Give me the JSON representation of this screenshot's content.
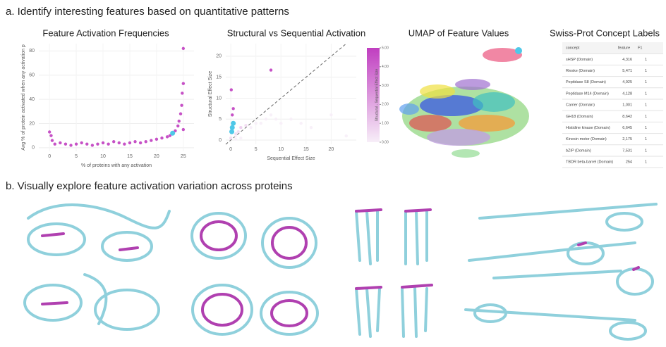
{
  "section_a": "a. Identify interesting features based on quantitative patterns",
  "section_b": "b. Visually explore feature activation variation across proteins",
  "chart_data": [
    {
      "type": "scatter",
      "title": "Feature Activation Frequencies",
      "x_label": "% of proteins with any activation",
      "y_label": "Avg % of protein activated when any activation p",
      "x": [
        0,
        0.5,
        1,
        2,
        3,
        4,
        5,
        6,
        7,
        8,
        9,
        10,
        11,
        12,
        13,
        14,
        15,
        16,
        17,
        18,
        19,
        20,
        21,
        22,
        22.5,
        23,
        23.5,
        24,
        24.2,
        24.5,
        24.7,
        24.8,
        25,
        25,
        25,
        0.3
      ],
      "values": [
        13,
        6,
        3,
        4,
        3,
        2,
        3,
        4,
        3,
        2,
        3,
        4,
        3,
        5,
        4,
        3,
        4,
        5,
        4,
        5,
        6,
        7,
        8,
        9,
        10,
        12,
        14,
        18,
        22,
        28,
        35,
        45,
        53,
        82,
        15,
        10
      ],
      "color": "#c03ec0",
      "highlight": {
        "x": [
          23
        ],
        "values": [
          12
        ],
        "color": "#4fc8e8"
      },
      "xlim": [
        -2,
        27
      ],
      "ylim": [
        -3,
        86
      ],
      "xticks": [
        0,
        5,
        10,
        15,
        20,
        25
      ],
      "yticks": [
        0,
        20,
        40,
        60,
        80
      ],
      "grid": true
    },
    {
      "type": "scatter",
      "title": "Structural vs Sequential Activation",
      "x_label": "Sequential Effect Size",
      "y_label": "Structural Effect Size",
      "x": [
        0,
        0.2,
        0.5,
        1,
        1.5,
        2,
        3,
        4,
        5,
        6,
        7,
        8,
        9,
        10,
        12,
        14,
        16,
        0.3,
        0.5,
        1,
        2,
        8,
        0.1,
        0.4,
        0.2,
        1,
        20,
        23
      ],
      "values": [
        0.5,
        2,
        4,
        1,
        2,
        3,
        3.5,
        3,
        4,
        4,
        5,
        6,
        5,
        4,
        5,
        4,
        3,
        6,
        7.5,
        1.5,
        0.5,
        16.7,
        12,
        3,
        2.5,
        0.2,
        6,
        1
      ],
      "highlight": {
        "x": [
          0.3,
          0.5,
          0.2
        ],
        "values": [
          3,
          4,
          2
        ],
        "color": "#4fc8e8"
      },
      "diagonal": true,
      "colorscale": [
        "#f7eef8",
        "#c03ec0"
      ],
      "color_label": "Structural - Sequential Effect Size",
      "clim": [
        0,
        5
      ],
      "cticks": [
        {
          "value": 0,
          "label": "0.00"
        },
        {
          "value": 1,
          "label": "1.00"
        },
        {
          "value": 2,
          "label": "2.00"
        },
        {
          "value": 3,
          "label": "3.00"
        },
        {
          "value": 4,
          "label": "4.00"
        },
        {
          "value": 5,
          "label": "5.00"
        }
      ],
      "xlim": [
        -1,
        25
      ],
      "ylim": [
        -1,
        23
      ],
      "xticks": [
        0,
        5,
        10,
        15,
        20
      ],
      "yticks": [
        0,
        5,
        10,
        15,
        20
      ],
      "grid": true
    }
  ],
  "umap_title": "UMAP of Feature Values",
  "table": {
    "title": "Swiss-Prot Concept Labels",
    "columns": [
      "concept",
      "feature",
      "F1"
    ],
    "rows": [
      [
        "sHSP (Domain)",
        "4,316",
        "1"
      ],
      [
        "Rieske (Domain)",
        "5,471",
        "1"
      ],
      [
        "Peptidase S8 (Domain)",
        "4,925",
        "1"
      ],
      [
        "Peptidase M14 (Domain)",
        "4,128",
        "1"
      ],
      [
        "Carrier (Domain)",
        "1,001",
        "1"
      ],
      [
        "GH18 (Domain)",
        "8,642",
        "1"
      ],
      [
        "Histidine kinase (Domain)",
        "6,645",
        "1"
      ],
      [
        "Kinesin motor (Domain)",
        "2,175",
        "1"
      ],
      [
        "bZIP (Domain)",
        "7,531",
        "1"
      ],
      [
        "TBDR beta-barrel (Domain)",
        "254",
        "1"
      ]
    ]
  }
}
